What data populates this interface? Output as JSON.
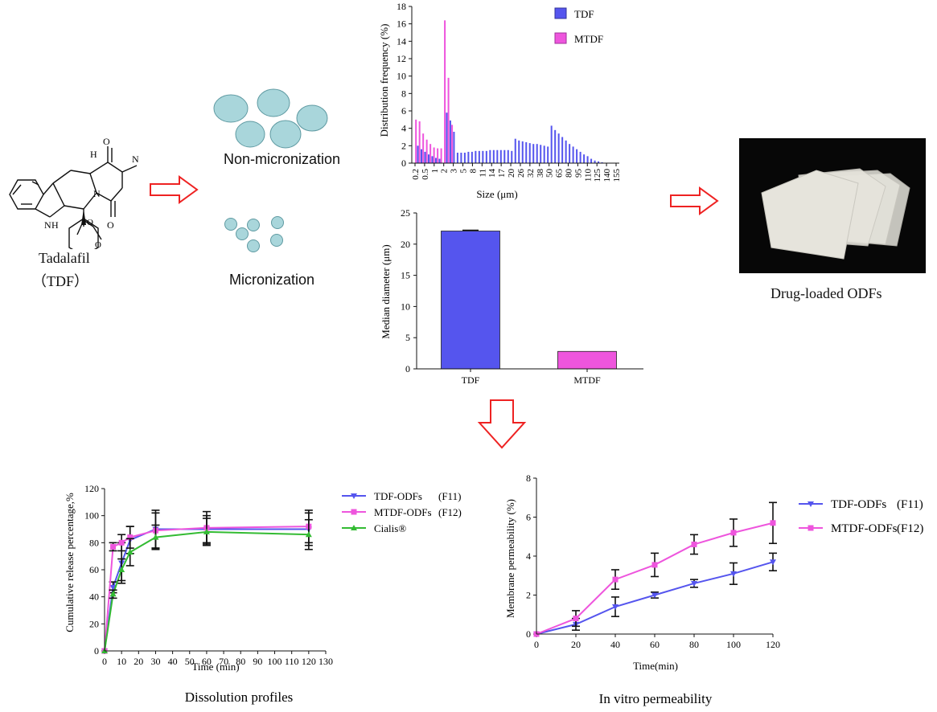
{
  "molecule": {
    "name": "Tadalafil",
    "abbr": "（TDF）",
    "atom_h": "H",
    "atom_n1": "N",
    "atom_n2": "N",
    "atom_nh": "N",
    "atom_h2": "H",
    "atom_o1": "O",
    "atom_o2": "O",
    "atom_o3": "O",
    "atom_o4": "O"
  },
  "particles": {
    "non_label": "Non-micronization",
    "micro_label": "Micronization",
    "fill": "#a9d6db",
    "stroke": "#5f9aa2"
  },
  "odf": {
    "label": "Drug-loaded ODFs"
  },
  "colors": {
    "tdf": "#5555ee",
    "mtdf": "#ee55dd",
    "cialis": "#33bb33",
    "arrow": "#ee2222"
  },
  "chart_data": [
    {
      "id": "distribution",
      "type": "bar",
      "title": "",
      "xlabel": "Size (μm)",
      "ylabel": "Distribution frequency (%)",
      "ylim": [
        0,
        18
      ],
      "yticks": [
        "0",
        "2",
        "4",
        "6",
        "8",
        "10",
        "12",
        "14",
        "16",
        "18"
      ],
      "xtick_labels": [
        "0.2",
        "0.5",
        "1",
        "2",
        "3",
        "5",
        "8",
        "11",
        "14",
        "17",
        "20",
        "26",
        "32",
        "38",
        "50",
        "65",
        "80",
        "95",
        "110",
        "125",
        "140",
        "155"
      ],
      "legend": [
        "TDF",
        "MTDF"
      ],
      "series": [
        {
          "name": "TDF",
          "values": [
            0,
            2.0,
            1.6,
            1.3,
            1.0,
            0.8,
            0.6,
            0.5,
            0,
            5.8,
            4.9,
            3.6,
            1.2,
            1.2,
            1.2,
            1.3,
            1.3,
            1.4,
            1.4,
            1.4,
            1.4,
            1.5,
            1.5,
            1.5,
            1.5,
            1.5,
            1.5,
            1.4,
            2.8,
            2.6,
            2.5,
            2.4,
            2.3,
            2.2,
            2.2,
            2.1,
            2.0,
            1.9,
            4.3,
            3.8,
            3.4,
            3.0,
            2.6,
            2.2,
            1.9,
            1.6,
            1.3,
            1.0,
            0.8,
            0.5,
            0.3,
            0.2,
            0.1,
            0,
            0,
            0,
            0
          ]
        },
        {
          "name": "MTDF",
          "values": [
            5.0,
            4.8,
            3.4,
            2.7,
            2.2,
            1.8,
            1.7,
            1.7,
            16.4,
            9.8,
            4.4,
            0,
            0,
            0,
            0,
            0,
            0,
            0,
            0,
            0,
            0,
            0,
            0,
            0,
            0,
            0,
            0,
            0,
            0,
            0,
            0,
            0,
            0,
            0,
            0,
            0,
            0,
            0,
            0,
            0,
            0,
            0,
            0,
            0,
            0,
            0,
            0,
            0,
            0,
            0,
            0,
            0,
            0,
            0,
            0,
            0,
            0
          ]
        }
      ]
    },
    {
      "id": "median",
      "type": "bar",
      "title": "",
      "xlabel": "",
      "ylabel": "Median diameter (μm)",
      "ylim": [
        0,
        25
      ],
      "yticks": [
        "0",
        "5",
        "10",
        "15",
        "20",
        "25"
      ],
      "categories": [
        "TDF",
        "MTDF"
      ],
      "values": [
        22.1,
        2.8
      ]
    },
    {
      "id": "dissolution",
      "type": "line",
      "title": "Dissolution profiles",
      "xlabel": "Time (min)",
      "ylabel": "Cumulative release percentage,%",
      "xlim": [
        0,
        130
      ],
      "ylim": [
        0,
        120
      ],
      "xticks": [
        "0",
        "10",
        "20",
        "30",
        "40",
        "50",
        "60",
        "70",
        "80",
        "90",
        "100",
        "110",
        "120",
        "130"
      ],
      "yticks": [
        "0",
        "20",
        "40",
        "60",
        "80",
        "100",
        "120"
      ],
      "x": [
        0,
        5,
        10,
        15,
        30,
        60,
        120
      ],
      "series": [
        {
          "name": "TDF-ODFs",
          "tag": "(F11)",
          "values": [
            0,
            47,
            65,
            82,
            90,
            90,
            90
          ],
          "err": [
            0,
            4,
            15,
            10,
            14,
            10,
            12
          ]
        },
        {
          "name": "MTDF-ODFs",
          "tag": "(F12)",
          "values": [
            0,
            77,
            80,
            84,
            89,
            91,
            92
          ],
          "err": [
            0,
            3,
            6,
            8,
            13,
            12,
            12
          ]
        },
        {
          "name": "Cialis®",
          "tag": "",
          "values": [
            0,
            42,
            60,
            73,
            84,
            88,
            86
          ],
          "err": [
            0,
            3,
            8,
            10,
            9,
            10,
            11
          ]
        }
      ]
    },
    {
      "id": "permeability",
      "type": "line",
      "title": "In vitro permeability",
      "xlabel": "Time(min)",
      "ylabel": "Membrane permeability (%)",
      "xlim": [
        0,
        120
      ],
      "ylim": [
        0,
        8
      ],
      "xticks": [
        "0",
        "20",
        "40",
        "60",
        "80",
        "100",
        "120"
      ],
      "yticks": [
        "0",
        "2",
        "4",
        "6",
        "8"
      ],
      "x": [
        0,
        20,
        40,
        60,
        80,
        100,
        120
      ],
      "series": [
        {
          "name": "TDF-ODFs",
          "tag": "(F11)",
          "values": [
            0,
            0.5,
            1.4,
            2.0,
            2.6,
            3.1,
            3.7
          ],
          "err": [
            0,
            0.3,
            0.5,
            0.15,
            0.2,
            0.55,
            0.45
          ]
        },
        {
          "name": "MTDF-ODFs",
          "tag": "(F12)",
          "values": [
            0,
            0.8,
            2.8,
            3.55,
            4.6,
            5.2,
            5.7
          ],
          "err": [
            0,
            0.4,
            0.5,
            0.6,
            0.5,
            0.7,
            1.05
          ]
        }
      ]
    }
  ]
}
